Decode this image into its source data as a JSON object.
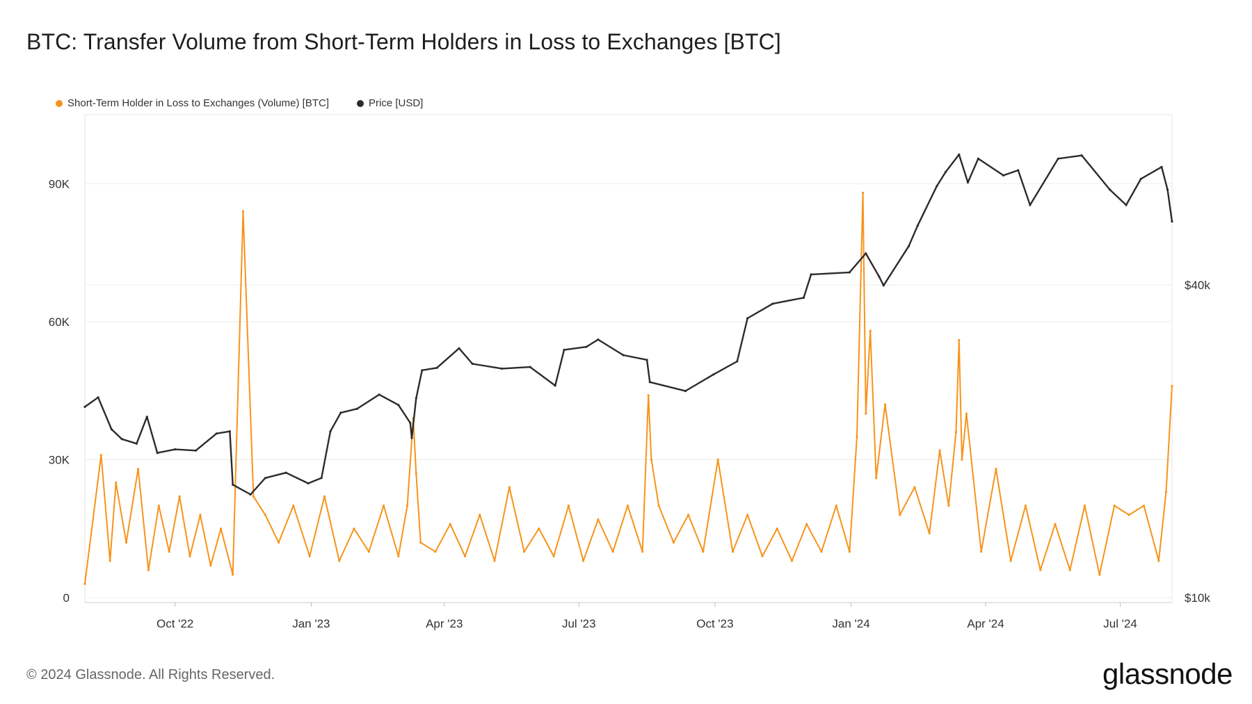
{
  "title": "BTC: Transfer Volume from Short-Term Holders in Loss to Exchanges [BTC]",
  "legend": {
    "volume_label": "Short-Term Holder in Loss to Exchanges (Volume) [BTC]",
    "price_label": "Price [USD]"
  },
  "footer": {
    "copyright": "© 2024 Glassnode. All Rights Reserved.",
    "brand": "glassnode"
  },
  "colors": {
    "volume": "#f7931a",
    "price": "#2b2b2b",
    "grid": "#ececec",
    "axis_text": "#333333"
  },
  "chart_data": {
    "type": "line",
    "x_start": "2022-08-01",
    "x_end": "2024-08-05",
    "x_ticks": [
      {
        "date": "2022-10-01",
        "label": "Oct '22"
      },
      {
        "date": "2023-01-01",
        "label": "Jan '23"
      },
      {
        "date": "2023-04-01",
        "label": "Apr '23"
      },
      {
        "date": "2023-07-01",
        "label": "Jul '23"
      },
      {
        "date": "2023-10-01",
        "label": "Oct '23"
      },
      {
        "date": "2024-01-01",
        "label": "Jan '24"
      },
      {
        "date": "2024-04-01",
        "label": "Apr '24"
      },
      {
        "date": "2024-07-01",
        "label": "Jul '24"
      }
    ],
    "y_left": {
      "ylim": [
        0,
        105000
      ],
      "ticks": [
        {
          "value": 0,
          "label": "0"
        },
        {
          "value": 30000,
          "label": "30K"
        },
        {
          "value": 60000,
          "label": "60K"
        },
        {
          "value": 90000,
          "label": "90K"
        }
      ]
    },
    "y_right": {
      "scale": "log",
      "ylim": [
        10000,
        80000
      ],
      "ticks": [
        {
          "value": 10000,
          "label": "$10k"
        },
        {
          "value": 40000,
          "label": "$40k"
        }
      ]
    },
    "series": [
      {
        "name": "Short-Term Holder in Loss to Exchanges (Volume) [BTC]",
        "axis": "left",
        "style": "line",
        "x": [
          "2022-08-01",
          "2022-08-12",
          "2022-08-18",
          "2022-08-22",
          "2022-08-29",
          "2022-09-06",
          "2022-09-13",
          "2022-09-20",
          "2022-09-27",
          "2022-10-04",
          "2022-10-11",
          "2022-10-18",
          "2022-10-25",
          "2022-11-01",
          "2022-11-09",
          "2022-11-16",
          "2022-11-23",
          "2022-12-01",
          "2022-12-10",
          "2022-12-20",
          "2022-12-31",
          "2023-01-10",
          "2023-01-20",
          "2023-01-30",
          "2023-02-09",
          "2023-02-19",
          "2023-03-01",
          "2023-03-07",
          "2023-03-11",
          "2023-03-13",
          "2023-03-16",
          "2023-03-26",
          "2023-04-05",
          "2023-04-15",
          "2023-04-25",
          "2023-05-05",
          "2023-05-15",
          "2023-05-25",
          "2023-06-04",
          "2023-06-14",
          "2023-06-24",
          "2023-07-04",
          "2023-07-14",
          "2023-07-24",
          "2023-08-03",
          "2023-08-13",
          "2023-08-17",
          "2023-08-19",
          "2023-08-24",
          "2023-09-03",
          "2023-09-13",
          "2023-09-23",
          "2023-10-03",
          "2023-10-13",
          "2023-10-23",
          "2023-11-02",
          "2023-11-12",
          "2023-11-22",
          "2023-12-02",
          "2023-12-12",
          "2023-12-22",
          "2023-12-31",
          "2024-01-05",
          "2024-01-09",
          "2024-01-11",
          "2024-01-14",
          "2024-01-18",
          "2024-01-24",
          "2024-02-03",
          "2024-02-13",
          "2024-02-23",
          "2024-03-01",
          "2024-03-07",
          "2024-03-12",
          "2024-03-14",
          "2024-03-16",
          "2024-03-19",
          "2024-03-29",
          "2024-04-08",
          "2024-04-18",
          "2024-04-28",
          "2024-05-08",
          "2024-05-18",
          "2024-05-28",
          "2024-06-07",
          "2024-06-17",
          "2024-06-27",
          "2024-07-07",
          "2024-07-17",
          "2024-07-27",
          "2024-08-01",
          "2024-08-05"
        ],
        "values": [
          3000,
          31000,
          8000,
          25000,
          12000,
          28000,
          6000,
          20000,
          10000,
          22000,
          9000,
          18000,
          7000,
          15000,
          5000,
          84000,
          22000,
          18000,
          12000,
          20000,
          9000,
          22000,
          8000,
          15000,
          10000,
          20000,
          9000,
          20000,
          39000,
          27000,
          12000,
          10000,
          16000,
          9000,
          18000,
          8000,
          24000,
          10000,
          15000,
          9000,
          20000,
          8000,
          17000,
          10000,
          20000,
          10000,
          44000,
          30000,
          20000,
          12000,
          18000,
          10000,
          30000,
          10000,
          18000,
          9000,
          15000,
          8000,
          16000,
          10000,
          20000,
          10000,
          35000,
          88000,
          40000,
          58000,
          26000,
          42000,
          18000,
          24000,
          14000,
          32000,
          20000,
          36000,
          56000,
          30000,
          40000,
          10000,
          28000,
          8000,
          20000,
          6000,
          16000,
          6000,
          20000,
          5000,
          20000,
          18000,
          20000,
          8000,
          23000,
          46000
        ]
      },
      {
        "name": "Price [USD]",
        "axis": "right",
        "style": "line",
        "x": [
          "2022-08-01",
          "2022-08-10",
          "2022-08-19",
          "2022-08-26",
          "2022-09-05",
          "2022-09-12",
          "2022-09-19",
          "2022-10-01",
          "2022-10-15",
          "2022-10-29",
          "2022-11-07",
          "2022-11-09",
          "2022-11-21",
          "2022-12-01",
          "2022-12-15",
          "2022-12-30",
          "2023-01-08",
          "2023-01-14",
          "2023-01-21",
          "2023-02-01",
          "2023-02-16",
          "2023-03-01",
          "2023-03-09",
          "2023-03-10",
          "2023-03-13",
          "2023-03-17",
          "2023-03-27",
          "2023-04-11",
          "2023-04-20",
          "2023-05-10",
          "2023-05-29",
          "2023-06-15",
          "2023-06-21",
          "2023-07-06",
          "2023-07-14",
          "2023-07-31",
          "2023-08-16",
          "2023-08-18",
          "2023-09-11",
          "2023-09-30",
          "2023-10-16",
          "2023-10-23",
          "2023-11-09",
          "2023-11-30",
          "2023-12-05",
          "2023-12-31",
          "2024-01-11",
          "2024-01-20",
          "2024-01-23",
          "2024-02-09",
          "2024-02-15",
          "2024-02-28",
          "2024-03-05",
          "2024-03-14",
          "2024-03-20",
          "2024-03-27",
          "2024-04-13",
          "2024-04-23",
          "2024-05-01",
          "2024-05-20",
          "2024-06-05",
          "2024-06-24",
          "2024-07-05",
          "2024-07-15",
          "2024-07-29",
          "2024-08-02",
          "2024-08-05"
        ],
        "values": [
          23300,
          24300,
          21100,
          20200,
          19800,
          22300,
          19000,
          19300,
          19200,
          20700,
          20900,
          16500,
          15800,
          17000,
          17400,
          16600,
          17000,
          20900,
          22700,
          23100,
          24600,
          23500,
          21700,
          20300,
          24200,
          27400,
          27700,
          30200,
          28200,
          27600,
          27800,
          25600,
          30000,
          30400,
          31400,
          29300,
          28700,
          26000,
          25000,
          26900,
          28500,
          34500,
          36800,
          37800,
          41900,
          42300,
          46000,
          41500,
          39900,
          47500,
          52000,
          62000,
          66000,
          71300,
          63000,
          70000,
          65000,
          66500,
          57000,
          70000,
          71000,
          61000,
          57000,
          64000,
          67500,
          61000,
          53000
        ]
      }
    ]
  }
}
